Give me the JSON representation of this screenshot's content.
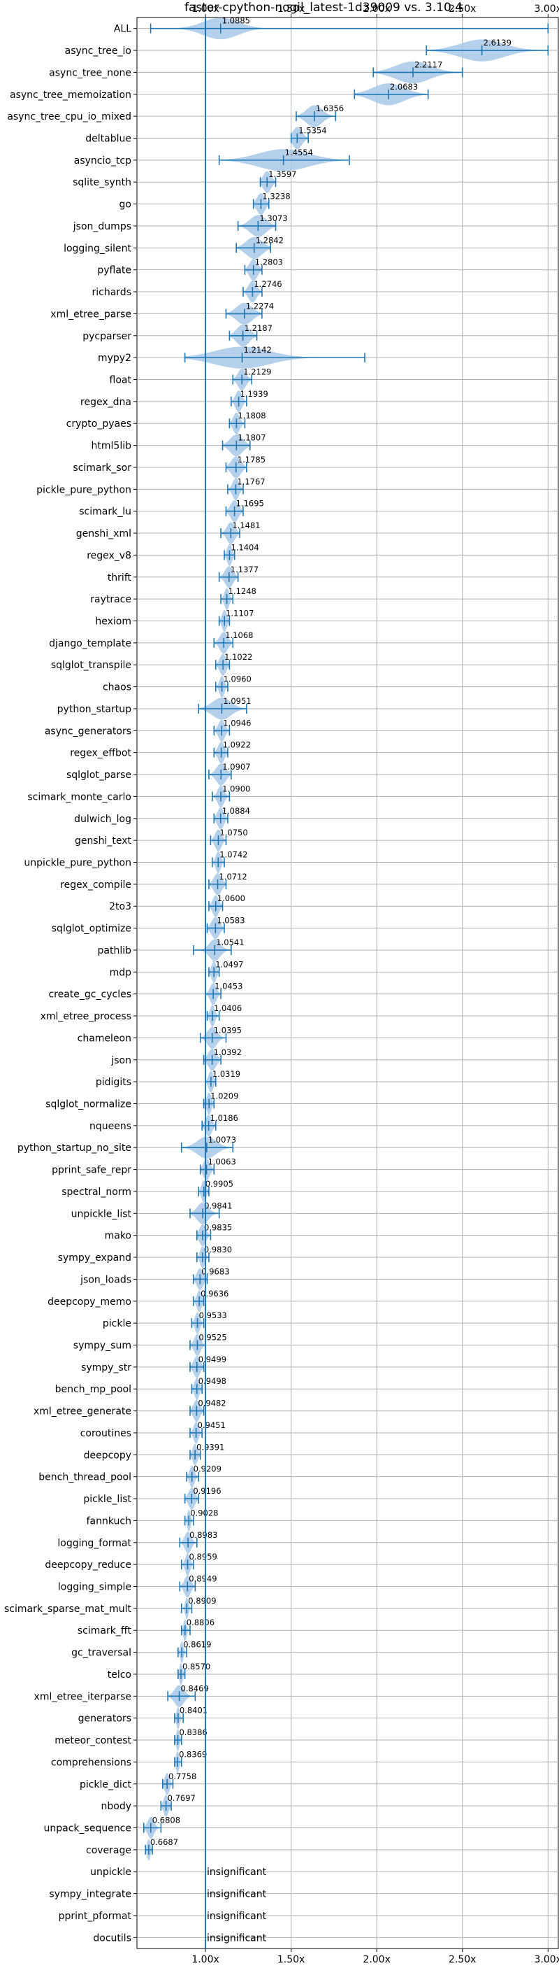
{
  "chart_data": {
    "type": "violin",
    "title": "faster-cpython-nogil_latest-1d39009 vs. 3.10.4",
    "xlim": [
      0.6,
      3.06
    ],
    "xticks": [
      "1.00x",
      "1.50x",
      "2.00x",
      "2.50x",
      "3.00x"
    ],
    "xtick_values": [
      1.0,
      1.5,
      2.0,
      2.5,
      3.0
    ],
    "reference_x": 1.0,
    "grid": true,
    "colors": {
      "violin": "#a8c8e6",
      "line": "#1f77b4"
    },
    "benchmarks": [
      {
        "name": "ALL",
        "value": 1.0885,
        "label": "1.0885",
        "min": 0.68,
        "max": 3.0,
        "spread": 0.22
      },
      {
        "name": "async_tree_io",
        "value": 2.6139,
        "label": "2.6139",
        "min": 2.29,
        "max": 3.0,
        "spread": 0.28
      },
      {
        "name": "async_tree_none",
        "value": 2.2117,
        "label": "2.2117",
        "min": 1.98,
        "max": 2.5,
        "spread": 0.22
      },
      {
        "name": "async_tree_memoization",
        "value": 2.0683,
        "label": "2.0683",
        "min": 1.87,
        "max": 2.3,
        "spread": 0.2
      },
      {
        "name": "async_tree_cpu_io_mixed",
        "value": 1.6356,
        "label": "1.6356",
        "min": 1.53,
        "max": 1.76,
        "spread": 0.1
      },
      {
        "name": "deltablue",
        "value": 1.5354,
        "label": "1.5354",
        "min": 1.5,
        "max": 1.6,
        "spread": 0.06
      },
      {
        "name": "asyncio_tcp",
        "value": 1.4554,
        "label": "1.4554",
        "min": 1.08,
        "max": 1.84,
        "spread": 0.32
      },
      {
        "name": "sqlite_synth",
        "value": 1.3597,
        "label": "1.3597",
        "min": 1.32,
        "max": 1.41,
        "spread": 0.05
      },
      {
        "name": "go",
        "value": 1.3238,
        "label": "1.3238",
        "min": 1.28,
        "max": 1.37,
        "spread": 0.05
      },
      {
        "name": "json_dumps",
        "value": 1.3073,
        "label": "1.3073",
        "min": 1.19,
        "max": 1.41,
        "spread": 0.1
      },
      {
        "name": "logging_silent",
        "value": 1.2842,
        "label": "1.2842",
        "min": 1.18,
        "max": 1.38,
        "spread": 0.1
      },
      {
        "name": "pyflate",
        "value": 1.2803,
        "label": "1.2803",
        "min": 1.23,
        "max": 1.33,
        "spread": 0.05
      },
      {
        "name": "richards",
        "value": 1.2746,
        "label": "1.2746",
        "min": 1.22,
        "max": 1.33,
        "spread": 0.05
      },
      {
        "name": "xml_etree_parse",
        "value": 1.2274,
        "label": "1.2274",
        "min": 1.12,
        "max": 1.33,
        "spread": 0.1
      },
      {
        "name": "pycparser",
        "value": 1.2187,
        "label": "1.2187",
        "min": 1.14,
        "max": 1.3,
        "spread": 0.08
      },
      {
        "name": "mypy2",
        "value": 1.2142,
        "label": "1.2142",
        "min": 0.88,
        "max": 1.93,
        "spread": 0.35
      },
      {
        "name": "float",
        "value": 1.2129,
        "label": "1.2129",
        "min": 1.16,
        "max": 1.27,
        "spread": 0.05
      },
      {
        "name": "regex_dna",
        "value": 1.1939,
        "label": "1.1939",
        "min": 1.15,
        "max": 1.24,
        "spread": 0.04
      },
      {
        "name": "crypto_pyaes",
        "value": 1.1808,
        "label": "1.1808",
        "min": 1.14,
        "max": 1.23,
        "spread": 0.04
      },
      {
        "name": "html5lib",
        "value": 1.1807,
        "label": "1.1807",
        "min": 1.1,
        "max": 1.26,
        "spread": 0.08
      },
      {
        "name": "scimark_sor",
        "value": 1.1785,
        "label": "1.1785",
        "min": 1.12,
        "max": 1.24,
        "spread": 0.06
      },
      {
        "name": "pickle_pure_python",
        "value": 1.1767,
        "label": "1.1767",
        "min": 1.13,
        "max": 1.22,
        "spread": 0.04
      },
      {
        "name": "scimark_lu",
        "value": 1.1695,
        "label": "1.1695",
        "min": 1.12,
        "max": 1.22,
        "spread": 0.05
      },
      {
        "name": "genshi_xml",
        "value": 1.1481,
        "label": "1.1481",
        "min": 1.09,
        "max": 1.2,
        "spread": 0.05
      },
      {
        "name": "regex_v8",
        "value": 1.1404,
        "label": "1.1404",
        "min": 1.11,
        "max": 1.17,
        "spread": 0.03
      },
      {
        "name": "thrift",
        "value": 1.1377,
        "label": "1.1377",
        "min": 1.08,
        "max": 1.19,
        "spread": 0.05
      },
      {
        "name": "raytrace",
        "value": 1.1248,
        "label": "1.1248",
        "min": 1.09,
        "max": 1.16,
        "spread": 0.03
      },
      {
        "name": "hexiom",
        "value": 1.1107,
        "label": "1.1107",
        "min": 1.08,
        "max": 1.14,
        "spread": 0.03
      },
      {
        "name": "django_template",
        "value": 1.1068,
        "label": "1.1068",
        "min": 1.05,
        "max": 1.16,
        "spread": 0.05
      },
      {
        "name": "sqlglot_transpile",
        "value": 1.1022,
        "label": "1.1022",
        "min": 1.06,
        "max": 1.14,
        "spread": 0.04
      },
      {
        "name": "chaos",
        "value": 1.096,
        "label": "1.0960",
        "min": 1.06,
        "max": 1.13,
        "spread": 0.03
      },
      {
        "name": "python_startup",
        "value": 1.0951,
        "label": "1.0951",
        "min": 0.96,
        "max": 1.24,
        "spread": 0.12
      },
      {
        "name": "async_generators",
        "value": 1.0946,
        "label": "1.0946",
        "min": 1.05,
        "max": 1.14,
        "spread": 0.04
      },
      {
        "name": "regex_effbot",
        "value": 1.0922,
        "label": "1.0922",
        "min": 1.05,
        "max": 1.13,
        "spread": 0.04
      },
      {
        "name": "sqlglot_parse",
        "value": 1.0907,
        "label": "1.0907",
        "min": 1.02,
        "max": 1.15,
        "spread": 0.06
      },
      {
        "name": "scimark_monte_carlo",
        "value": 1.09,
        "label": "1.0900",
        "min": 1.04,
        "max": 1.14,
        "spread": 0.04
      },
      {
        "name": "dulwich_log",
        "value": 1.0884,
        "label": "1.0884",
        "min": 1.05,
        "max": 1.13,
        "spread": 0.04
      },
      {
        "name": "genshi_text",
        "value": 1.075,
        "label": "1.0750",
        "min": 1.03,
        "max": 1.12,
        "spread": 0.04
      },
      {
        "name": "unpickle_pure_python",
        "value": 1.0742,
        "label": "1.0742",
        "min": 1.04,
        "max": 1.11,
        "spread": 0.03
      },
      {
        "name": "regex_compile",
        "value": 1.0712,
        "label": "1.0712",
        "min": 1.02,
        "max": 1.12,
        "spread": 0.05
      },
      {
        "name": "2to3",
        "value": 1.06,
        "label": "1.0600",
        "min": 1.02,
        "max": 1.1,
        "spread": 0.04
      },
      {
        "name": "sqlglot_optimize",
        "value": 1.0583,
        "label": "1.0583",
        "min": 1.01,
        "max": 1.11,
        "spread": 0.05
      },
      {
        "name": "pathlib",
        "value": 1.0541,
        "label": "1.0541",
        "min": 0.93,
        "max": 1.15,
        "spread": 0.07
      },
      {
        "name": "mdp",
        "value": 1.0497,
        "label": "1.0497",
        "min": 1.02,
        "max": 1.08,
        "spread": 0.03
      },
      {
        "name": "create_gc_cycles",
        "value": 1.0453,
        "label": "1.0453",
        "min": 1.0,
        "max": 1.09,
        "spread": 0.04
      },
      {
        "name": "xml_etree_process",
        "value": 1.0406,
        "label": "1.0406",
        "min": 1.01,
        "max": 1.08,
        "spread": 0.03
      },
      {
        "name": "chameleon",
        "value": 1.0395,
        "label": "1.0395",
        "min": 0.97,
        "max": 1.12,
        "spread": 0.06
      },
      {
        "name": "json",
        "value": 1.0392,
        "label": "1.0392",
        "min": 0.99,
        "max": 1.09,
        "spread": 0.05
      },
      {
        "name": "pidigits",
        "value": 1.0319,
        "label": "1.0319",
        "min": 1.0,
        "max": 1.06,
        "spread": 0.03
      },
      {
        "name": "sqlglot_normalize",
        "value": 1.0209,
        "label": "1.0209",
        "min": 0.99,
        "max": 1.05,
        "spread": 0.03
      },
      {
        "name": "nqueens",
        "value": 1.0186,
        "label": "1.0186",
        "min": 0.98,
        "max": 1.06,
        "spread": 0.04
      },
      {
        "name": "python_startup_no_site",
        "value": 1.0073,
        "label": "1.0073",
        "min": 0.86,
        "max": 1.16,
        "spread": 0.12
      },
      {
        "name": "pprint_safe_repr",
        "value": 1.0063,
        "label": "1.0063",
        "min": 0.97,
        "max": 1.05,
        "spread": 0.04
      },
      {
        "name": "spectral_norm",
        "value": 0.9905,
        "label": "0.9905",
        "min": 0.96,
        "max": 1.02,
        "spread": 0.03
      },
      {
        "name": "unpickle_list",
        "value": 0.9841,
        "label": "0.9841",
        "min": 0.91,
        "max": 1.08,
        "spread": 0.07
      },
      {
        "name": "mako",
        "value": 0.9835,
        "label": "0.9835",
        "min": 0.95,
        "max": 1.03,
        "spread": 0.04
      },
      {
        "name": "sympy_expand",
        "value": 0.983,
        "label": "0.9830",
        "min": 0.95,
        "max": 1.02,
        "spread": 0.03
      },
      {
        "name": "json_loads",
        "value": 0.9683,
        "label": "0.9683",
        "min": 0.93,
        "max": 1.01,
        "spread": 0.04
      },
      {
        "name": "deepcopy_memo",
        "value": 0.9636,
        "label": "0.9636",
        "min": 0.93,
        "max": 0.99,
        "spread": 0.03
      },
      {
        "name": "pickle",
        "value": 0.9533,
        "label": "0.9533",
        "min": 0.92,
        "max": 0.99,
        "spread": 0.03
      },
      {
        "name": "sympy_sum",
        "value": 0.9525,
        "label": "0.9525",
        "min": 0.91,
        "max": 1.0,
        "spread": 0.04
      },
      {
        "name": "sympy_str",
        "value": 0.9499,
        "label": "0.9499",
        "min": 0.91,
        "max": 0.99,
        "spread": 0.04
      },
      {
        "name": "bench_mp_pool",
        "value": 0.9498,
        "label": "0.9498",
        "min": 0.92,
        "max": 0.98,
        "spread": 0.03
      },
      {
        "name": "xml_etree_generate",
        "value": 0.9482,
        "label": "0.9482",
        "min": 0.91,
        "max": 0.99,
        "spread": 0.04
      },
      {
        "name": "coroutines",
        "value": 0.9451,
        "label": "0.9451",
        "min": 0.91,
        "max": 0.98,
        "spread": 0.03
      },
      {
        "name": "deepcopy",
        "value": 0.9391,
        "label": "0.9391",
        "min": 0.91,
        "max": 0.97,
        "spread": 0.03
      },
      {
        "name": "bench_thread_pool",
        "value": 0.9209,
        "label": "0.9209",
        "min": 0.89,
        "max": 0.96,
        "spread": 0.03
      },
      {
        "name": "pickle_list",
        "value": 0.9196,
        "label": "0.9196",
        "min": 0.88,
        "max": 0.96,
        "spread": 0.04
      },
      {
        "name": "fannkuch",
        "value": 0.9028,
        "label": "0.9028",
        "min": 0.88,
        "max": 0.93,
        "spread": 0.02
      },
      {
        "name": "logging_format",
        "value": 0.8983,
        "label": "0.8983",
        "min": 0.85,
        "max": 0.95,
        "spread": 0.04
      },
      {
        "name": "deepcopy_reduce",
        "value": 0.8959,
        "label": "0.8959",
        "min": 0.86,
        "max": 0.93,
        "spread": 0.03
      },
      {
        "name": "logging_simple",
        "value": 0.8949,
        "label": "0.8949",
        "min": 0.85,
        "max": 0.94,
        "spread": 0.04
      },
      {
        "name": "scimark_sparse_mat_mult",
        "value": 0.8909,
        "label": "0.8909",
        "min": 0.86,
        "max": 0.92,
        "spread": 0.02
      },
      {
        "name": "scimark_fft",
        "value": 0.8806,
        "label": "0.8806",
        "min": 0.86,
        "max": 0.91,
        "spread": 0.02
      },
      {
        "name": "gc_traversal",
        "value": 0.8619,
        "label": "0.8619",
        "min": 0.84,
        "max": 0.89,
        "spread": 0.02
      },
      {
        "name": "telco",
        "value": 0.857,
        "label": "0.8570",
        "min": 0.84,
        "max": 0.88,
        "spread": 0.02
      },
      {
        "name": "xml_etree_iterparse",
        "value": 0.8469,
        "label": "0.8469",
        "min": 0.78,
        "max": 0.94,
        "spread": 0.06
      },
      {
        "name": "generators",
        "value": 0.8401,
        "label": "0.8401",
        "min": 0.82,
        "max": 0.87,
        "spread": 0.02
      },
      {
        "name": "meteor_contest",
        "value": 0.8386,
        "label": "0.8386",
        "min": 0.82,
        "max": 0.86,
        "spread": 0.02
      },
      {
        "name": "comprehensions",
        "value": 0.8369,
        "label": "0.8369",
        "min": 0.82,
        "max": 0.86,
        "spread": 0.02
      },
      {
        "name": "pickle_dict",
        "value": 0.7758,
        "label": "0.7758",
        "min": 0.75,
        "max": 0.81,
        "spread": 0.03
      },
      {
        "name": "nbody",
        "value": 0.7697,
        "label": "0.7697",
        "min": 0.74,
        "max": 0.8,
        "spread": 0.03
      },
      {
        "name": "unpack_sequence",
        "value": 0.6808,
        "label": "0.6808",
        "min": 0.64,
        "max": 0.74,
        "spread": 0.04
      },
      {
        "name": "coverage",
        "value": 0.6687,
        "label": "0.6687",
        "min": 0.65,
        "max": 0.69,
        "spread": 0.02
      },
      {
        "name": "unpickle",
        "value": null,
        "label": "insignificant"
      },
      {
        "name": "sympy_integrate",
        "value": null,
        "label": "insignificant"
      },
      {
        "name": "pprint_pformat",
        "value": null,
        "label": "insignificant"
      },
      {
        "name": "docutils",
        "value": null,
        "label": "insignificant"
      }
    ]
  }
}
